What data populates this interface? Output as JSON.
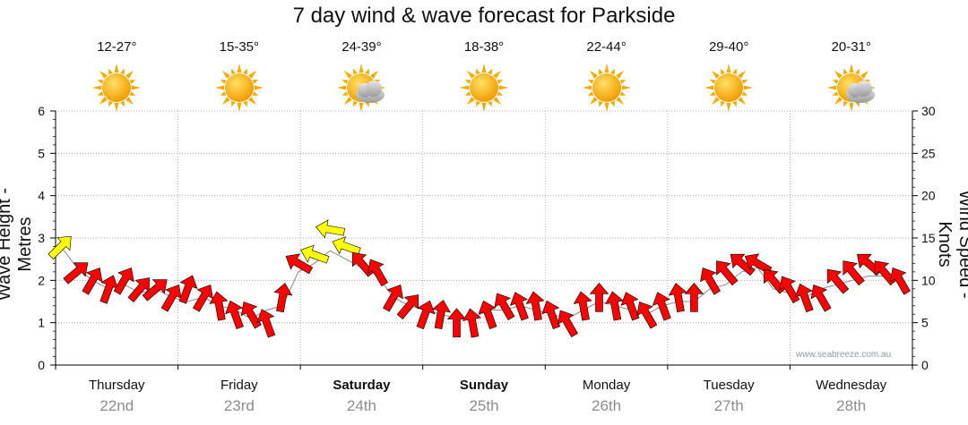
{
  "title": "7 day wind & wave forecast for Parkside",
  "watermark": "www.seabreeze.com.au",
  "days": [
    {
      "name": "Thursday",
      "date": "22nd",
      "temp": "12-27°",
      "icon": "sun-icon",
      "bold": false
    },
    {
      "name": "Friday",
      "date": "23rd",
      "temp": "15-35°",
      "icon": "sun-icon",
      "bold": false
    },
    {
      "name": "Saturday",
      "date": "24th",
      "temp": "24-39°",
      "icon": "sun-cloud-icon",
      "bold": true
    },
    {
      "name": "Sunday",
      "date": "25th",
      "temp": "18-38°",
      "icon": "sun-icon",
      "bold": true
    },
    {
      "name": "Monday",
      "date": "26th",
      "temp": "22-44°",
      "icon": "sun-icon",
      "bold": false
    },
    {
      "name": "Tuesday",
      "date": "27th",
      "temp": "29-40°",
      "icon": "sun-icon",
      "bold": false
    },
    {
      "name": "Wednesday",
      "date": "28th",
      "temp": "20-31°",
      "icon": "sun-cloud-icon",
      "bold": false
    }
  ],
  "chart_data": {
    "type": "line",
    "ylabel_left": "Wave Height - Metres",
    "ylabel_right": "Wind Speed - Knots",
    "ylim_left": [
      0,
      6
    ],
    "ylim_right": [
      0,
      30
    ],
    "yticks_left": [
      "0",
      "1",
      "2",
      "3",
      "4",
      "5",
      "6"
    ],
    "yticks_right": [
      "0",
      "5",
      "10",
      "15",
      "20",
      "25",
      "30"
    ],
    "categories": [
      "Thursday",
      "Friday",
      "Saturday",
      "Sunday",
      "Monday",
      "Tuesday",
      "Wednesday"
    ],
    "grid": true,
    "colors": {
      "strong_wind": "#ff0000",
      "light_wind": "#ffff00",
      "wave_line": "#888888",
      "grid": "#999999"
    },
    "wave_height_m": [
      2.8,
      2.3,
      2.0,
      1.8,
      1.9,
      1.7,
      1.8,
      1.6,
      1.5,
      1.6,
      1.4,
      1.3,
      1.1,
      1.3,
      1.4,
      2.2,
      2.4,
      2.7,
      2.5,
      2.3,
      2.1,
      1.6,
      1.4,
      1.3,
      1.2,
      1.1,
      1.1,
      1.3,
      1.3,
      1.4,
      1.3,
      1.2,
      1.1,
      1.3,
      1.5,
      1.4,
      1.3,
      1.2,
      1.4,
      1.5,
      1.5,
      1.8,
      1.9,
      2.2,
      2.3,
      1.8,
      1.7,
      1.6,
      1.8,
      1.9,
      2.0,
      2.1,
      2.1,
      2.0
    ],
    "wind_speed_kt": [
      14,
      11,
      10,
      9,
      10,
      9,
      9,
      8,
      9,
      8,
      7,
      6,
      6,
      5,
      8,
      12,
      13,
      16,
      14,
      12,
      11,
      8,
      7,
      6,
      6,
      5,
      5,
      6,
      7,
      7,
      7,
      6,
      5,
      7,
      8,
      7,
      7,
      6,
      7,
      8,
      8,
      10,
      11,
      12,
      12,
      10,
      9,
      8,
      8,
      10,
      11,
      12,
      11,
      10
    ],
    "wind_direction_deg": [
      315,
      320,
      300,
      290,
      300,
      310,
      320,
      300,
      290,
      300,
      260,
      250,
      240,
      250,
      280,
      210,
      200,
      190,
      200,
      230,
      240,
      300,
      310,
      290,
      280,
      270,
      260,
      250,
      240,
      250,
      260,
      250,
      240,
      260,
      270,
      260,
      250,
      240,
      250,
      260,
      270,
      240,
      230,
      220,
      210,
      230,
      240,
      250,
      240,
      230,
      230,
      220,
      230,
      240
    ]
  }
}
